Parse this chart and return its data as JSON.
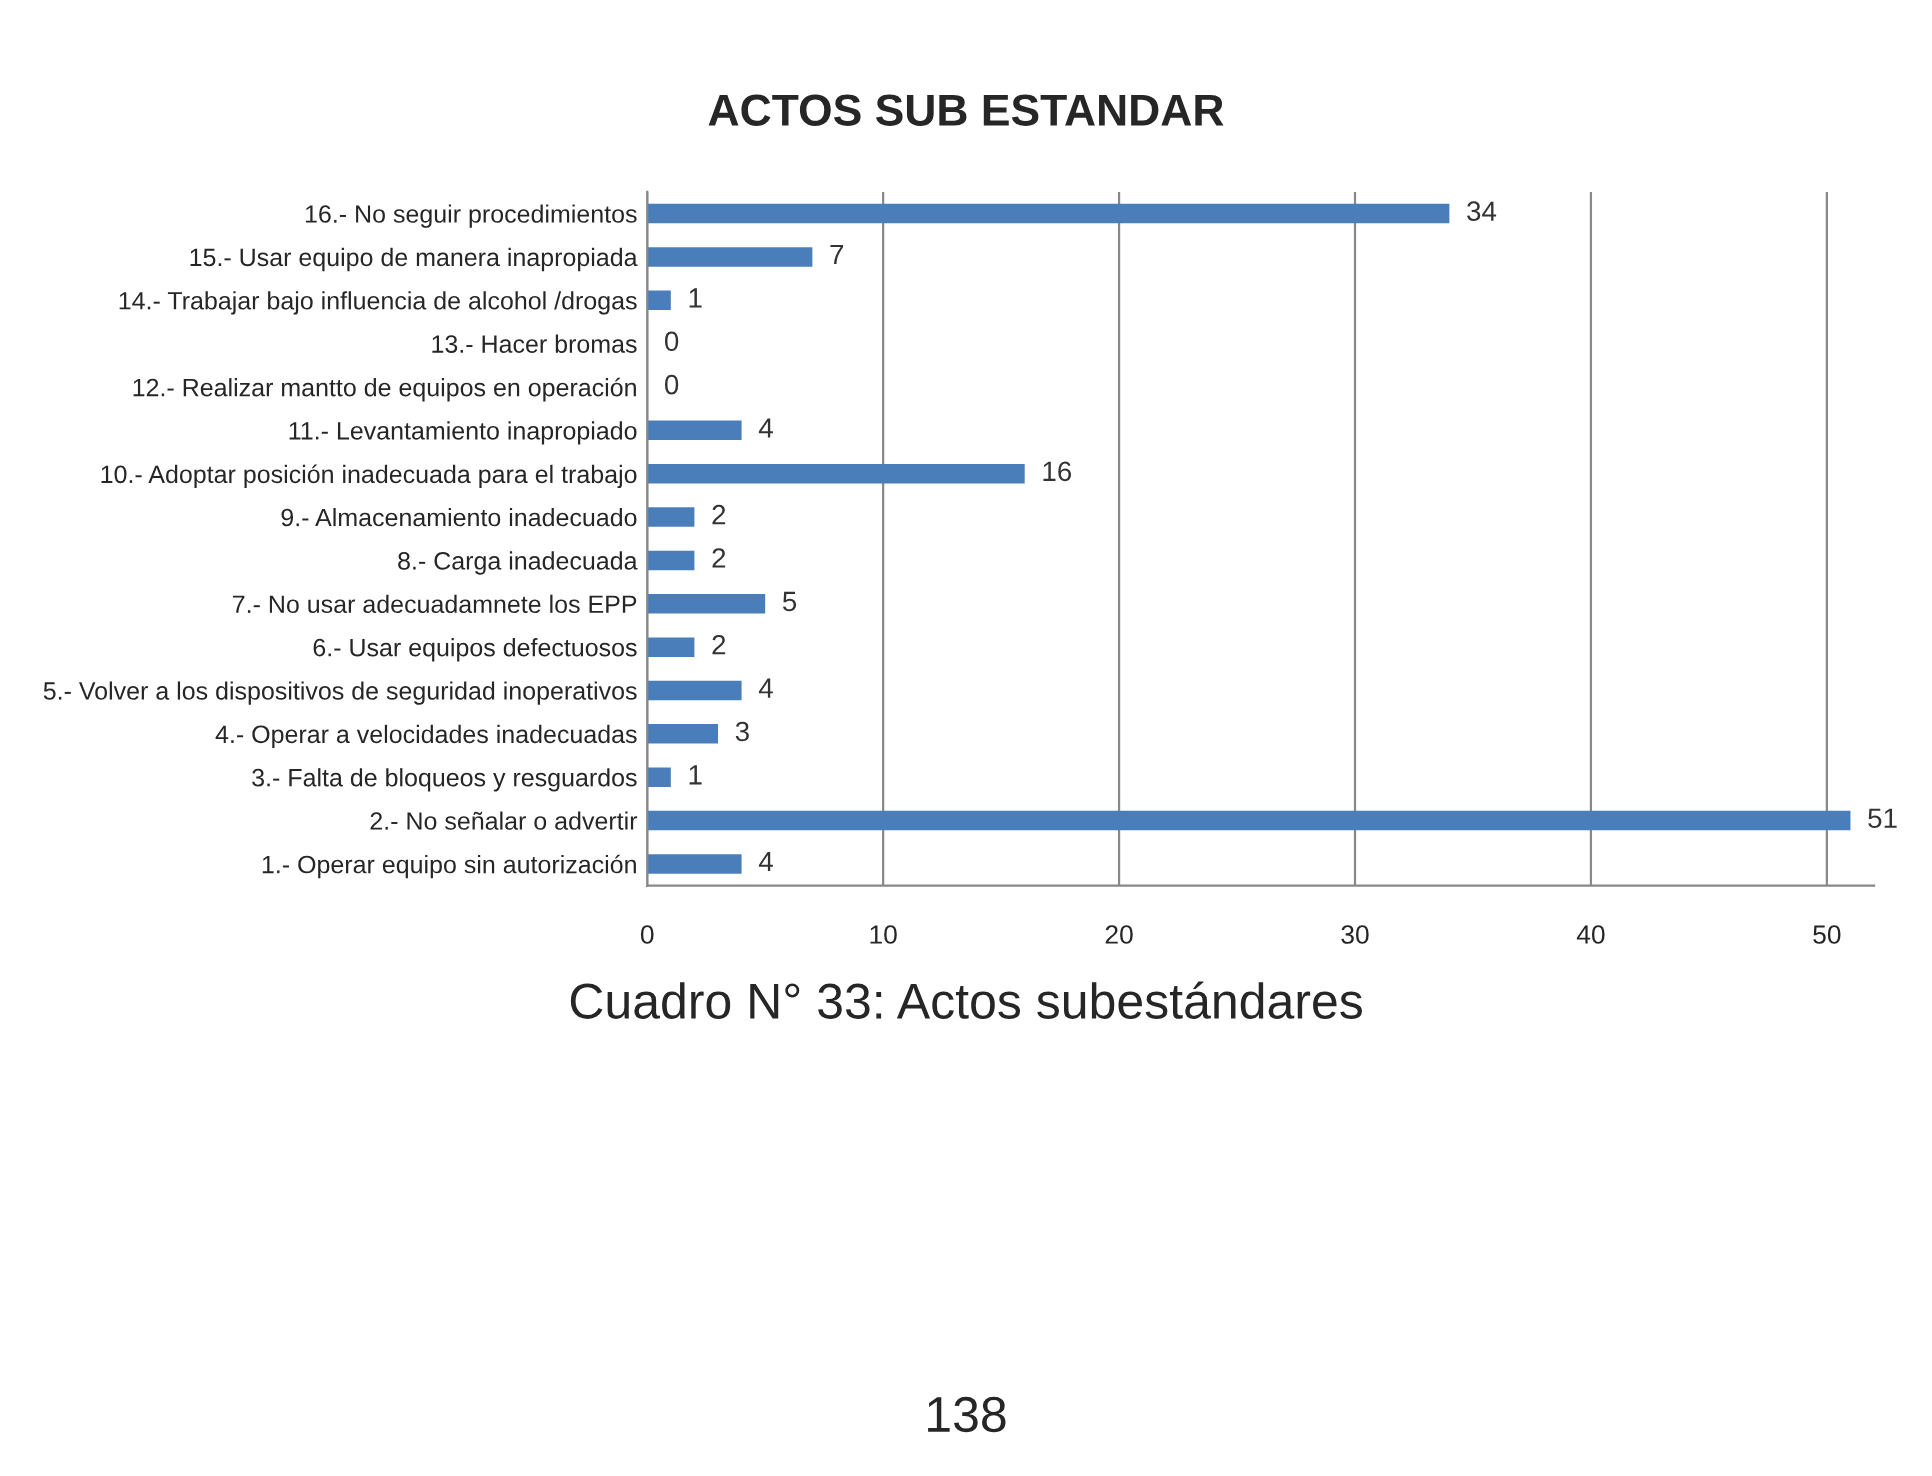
{
  "chart_data": {
    "type": "bar",
    "orientation": "horizontal",
    "title": "ACTOS SUB ESTANDAR",
    "categories": [
      "16.- No seguir procedimientos",
      "15.- Usar equipo de manera inapropiada",
      "14.- Trabajar bajo influencia de alcohol /drogas",
      "13.- Hacer bromas",
      "12.- Realizar mantto de equipos en operación",
      "11.- Levantamiento inapropiado",
      "10.- Adoptar posición inadecuada para el trabajo",
      "9.- Almacenamiento inadecuado",
      "8.- Carga inadecuada",
      "7.- No usar adecuadamnete los EPP",
      "6.- Usar equipos defectuosos",
      "5.- Volver a los dispositivos de seguridad inoperativos",
      "4.- Operar a velocidades inadecuadas",
      "3.- Falta de bloqueos y resguardos",
      "2.- No señalar o advertir",
      "1.- Operar equipo sin autorización"
    ],
    "values": [
      34,
      7,
      1,
      0,
      0,
      4,
      16,
      2,
      2,
      5,
      2,
      4,
      3,
      1,
      51,
      4
    ],
    "color": "#4a7ebb",
    "xlim": [
      0,
      52
    ],
    "xticks": [
      0,
      10,
      20,
      30,
      40,
      50
    ],
    "grid": "x",
    "data_labels": true,
    "legend": false,
    "annotations": [
      "Cuadro N° 33: Actos subestándares",
      "138"
    ]
  }
}
